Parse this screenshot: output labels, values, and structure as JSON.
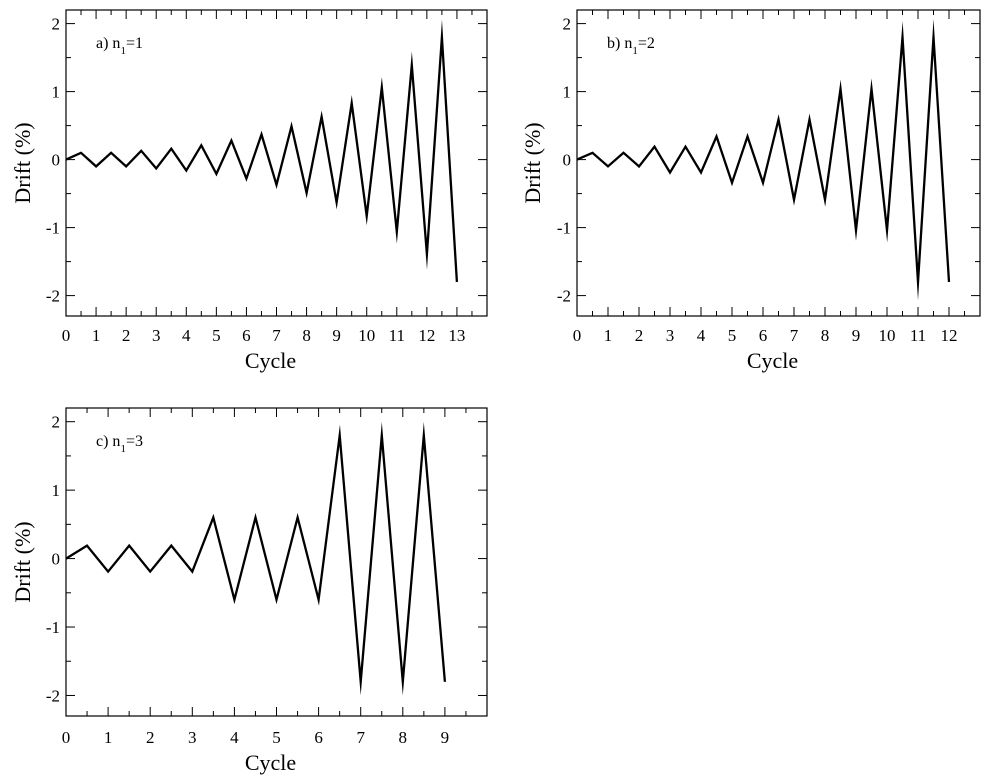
{
  "chart_data": [
    {
      "type": "line",
      "panel_label": "a) n",
      "panel_subscript": "1",
      "panel_suffix": "=1",
      "xlabel": "Cycle",
      "ylabel": "Drift (%)",
      "xlim": [
        0,
        14
      ],
      "ylim": [
        -2.3,
        2.2
      ],
      "x_ticks": [
        0,
        1,
        2,
        3,
        4,
        5,
        6,
        7,
        8,
        9,
        10,
        11,
        12,
        13
      ],
      "y_ticks": [
        -2,
        -1,
        0,
        1,
        2
      ],
      "series": [
        {
          "x": [
            0,
            0.5,
            1,
            1.5,
            2,
            2.5,
            3,
            3.5,
            4,
            4.5,
            5,
            5.5,
            6,
            6.5,
            7,
            7.5,
            8,
            8.5,
            9,
            9.5,
            10,
            10.5,
            11,
            11.5,
            12,
            12.5,
            13
          ],
          "y": [
            0,
            0.1,
            -0.1,
            0.1,
            -0.1,
            0.13,
            -0.13,
            0.16,
            -0.16,
            0.21,
            -0.21,
            0.28,
            -0.28,
            0.37,
            -0.37,
            0.49,
            -0.49,
            0.63,
            -0.63,
            0.83,
            -0.83,
            1.06,
            -1.06,
            1.39,
            -1.39,
            1.8,
            -1.8
          ]
        }
      ]
    },
    {
      "type": "line",
      "panel_label": "b) n",
      "panel_subscript": "1",
      "panel_suffix": "=2",
      "xlabel": "Cycle",
      "ylabel": "Drift (%)",
      "xlim": [
        0,
        13
      ],
      "ylim": [
        -2.3,
        2.2
      ],
      "x_ticks": [
        0,
        1,
        2,
        3,
        4,
        5,
        6,
        7,
        8,
        9,
        10,
        11,
        12
      ],
      "y_ticks": [
        -2,
        -1,
        0,
        1,
        2
      ],
      "series": [
        {
          "x": [
            0,
            0.5,
            1,
            1.5,
            2,
            2.5,
            3,
            3.5,
            4,
            4.5,
            5,
            5.5,
            6,
            6.5,
            7,
            7.5,
            8,
            8.5,
            9,
            9.5,
            10,
            10.5,
            11,
            11.5,
            12
          ],
          "y": [
            0,
            0.1,
            -0.1,
            0.1,
            -0.1,
            0.19,
            -0.19,
            0.19,
            -0.19,
            0.34,
            -0.34,
            0.34,
            -0.34,
            0.59,
            -0.59,
            0.59,
            -0.59,
            1.04,
            -1.04,
            1.04,
            -1.04,
            1.8,
            -1.8,
            1.8,
            -1.8
          ]
        }
      ]
    },
    {
      "type": "line",
      "panel_label": "c) n",
      "panel_subscript": "1",
      "panel_suffix": "=3",
      "xlabel": "Cycle",
      "ylabel": "Drift (%)",
      "xlim": [
        0,
        10
      ],
      "ylim": [
        -2.3,
        2.2
      ],
      "x_ticks": [
        0,
        1,
        2,
        3,
        4,
        5,
        6,
        7,
        8,
        9
      ],
      "y_ticks": [
        -2,
        -1,
        0,
        1,
        2
      ],
      "series": [
        {
          "x": [
            0,
            0.5,
            1,
            1.5,
            2,
            2.5,
            3,
            3.5,
            4,
            4.5,
            5,
            5.5,
            6,
            6.5,
            7,
            7.5,
            8,
            8.5,
            9
          ],
          "y": [
            0,
            0.19,
            -0.19,
            0.19,
            -0.19,
            0.19,
            -0.19,
            0.6,
            -0.6,
            0.6,
            -0.6,
            0.6,
            -0.6,
            1.8,
            -1.8,
            1.8,
            -1.8,
            1.8,
            -1.8
          ]
        }
      ]
    }
  ]
}
